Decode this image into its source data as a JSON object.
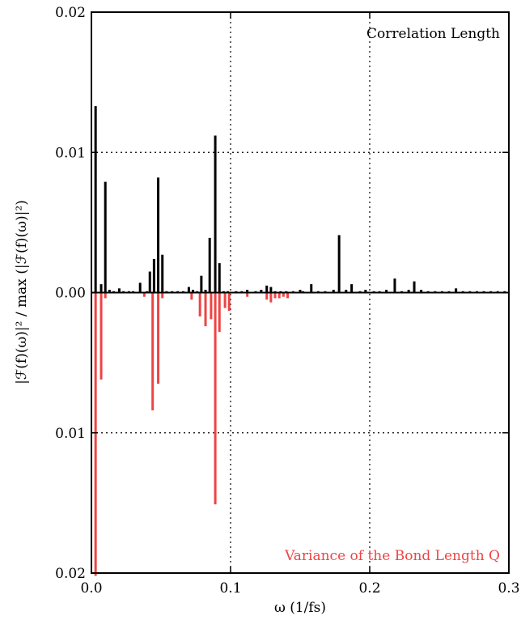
{
  "chart_data": {
    "type": "bar",
    "xlabel": "ω (1/fs)",
    "ylabel": "|ℱ(f)(ω)|² / max (|ℱ(f)(ω)|²)",
    "xlim": [
      0.0,
      0.3
    ],
    "ylim": [
      -0.02,
      0.02
    ],
    "xticks": [
      {
        "value": 0.0,
        "label": "0.0"
      },
      {
        "value": 0.1,
        "label": "0.1"
      },
      {
        "value": 0.2,
        "label": "0.2"
      },
      {
        "value": 0.3,
        "label": "0.3"
      }
    ],
    "yticks": [
      {
        "value": 0.02,
        "label": "0.02"
      },
      {
        "value": 0.01,
        "label": "0.01"
      },
      {
        "value": 0.0,
        "label": "0.00"
      },
      {
        "value": -0.01,
        "label": "0.01"
      },
      {
        "value": -0.02,
        "label": "0.02"
      }
    ],
    "grid": "dotted",
    "grid_x": [
      0.1,
      0.2
    ],
    "grid_y": [
      0.01,
      -0.01
    ],
    "series": [
      {
        "name": "Correlation Length",
        "color": "#000000",
        "direction": "up",
        "x": [
          0.003,
          0.007,
          0.01,
          0.013,
          0.016,
          0.02,
          0.023,
          0.027,
          0.03,
          0.035,
          0.04,
          0.042,
          0.045,
          0.048,
          0.051,
          0.054,
          0.058,
          0.062,
          0.066,
          0.07,
          0.073,
          0.076,
          0.079,
          0.082,
          0.085,
          0.089,
          0.092,
          0.095,
          0.098,
          0.104,
          0.108,
          0.112,
          0.118,
          0.122,
          0.126,
          0.129,
          0.132,
          0.136,
          0.14,
          0.145,
          0.15,
          0.152,
          0.158,
          0.163,
          0.168,
          0.174,
          0.178,
          0.183,
          0.187,
          0.193,
          0.197,
          0.203,
          0.207,
          0.212,
          0.218,
          0.223,
          0.228,
          0.232,
          0.237,
          0.242,
          0.247,
          0.252,
          0.257,
          0.262,
          0.267,
          0.272,
          0.277,
          0.282,
          0.287,
          0.292,
          0.297
        ],
        "values": [
          0.0133,
          0.0006,
          0.0079,
          0.0002,
          0.0001,
          0.0003,
          0.0001,
          0.0001,
          0.0001,
          0.0007,
          0.0001,
          0.0015,
          0.0024,
          0.0082,
          0.0027,
          0.0001,
          0.0001,
          0.0001,
          0.0001,
          0.0004,
          0.0002,
          0.0001,
          0.0012,
          0.0002,
          0.0039,
          0.0112,
          0.0021,
          0.0001,
          0.0001,
          0.0001,
          0.0001,
          0.0002,
          0.0001,
          0.0002,
          0.0005,
          0.0004,
          0.0001,
          0.0001,
          0.0001,
          0.0001,
          0.0002,
          0.0001,
          0.0006,
          0.0001,
          0.0001,
          0.0002,
          0.0041,
          0.0002,
          0.0006,
          0.0001,
          0.0002,
          0.0001,
          0.0001,
          0.0002,
          0.001,
          0.0001,
          0.0002,
          0.0008,
          0.0002,
          0.0001,
          0.0001,
          0.0001,
          0.0001,
          0.0003,
          0.0001,
          0.0001,
          0.0001,
          0.0001,
          0.0001,
          0.0001,
          0.0001
        ]
      },
      {
        "name": "Variance of the Bond Length Q",
        "color": "#ee4444",
        "direction": "down",
        "x": [
          0.003,
          0.007,
          0.01,
          0.038,
          0.044,
          0.048,
          0.051,
          0.072,
          0.078,
          0.082,
          0.086,
          0.089,
          0.092,
          0.096,
          0.099,
          0.112,
          0.126,
          0.129,
          0.132,
          0.135,
          0.138,
          0.141
        ],
        "values": [
          0.0202,
          0.0062,
          0.0004,
          0.0003,
          0.0084,
          0.0065,
          0.0004,
          0.0005,
          0.0017,
          0.0024,
          0.0019,
          0.0151,
          0.0028,
          0.0011,
          0.0013,
          0.0003,
          0.0005,
          0.0007,
          0.0004,
          0.0004,
          0.0003,
          0.0004
        ]
      }
    ],
    "annotations": [
      {
        "text": "Correlation Length",
        "position": "top-right",
        "color": "#000000"
      },
      {
        "text": "Variance of the Bond Length Q",
        "position": "bottom-right",
        "color": "#ee4444"
      }
    ]
  }
}
